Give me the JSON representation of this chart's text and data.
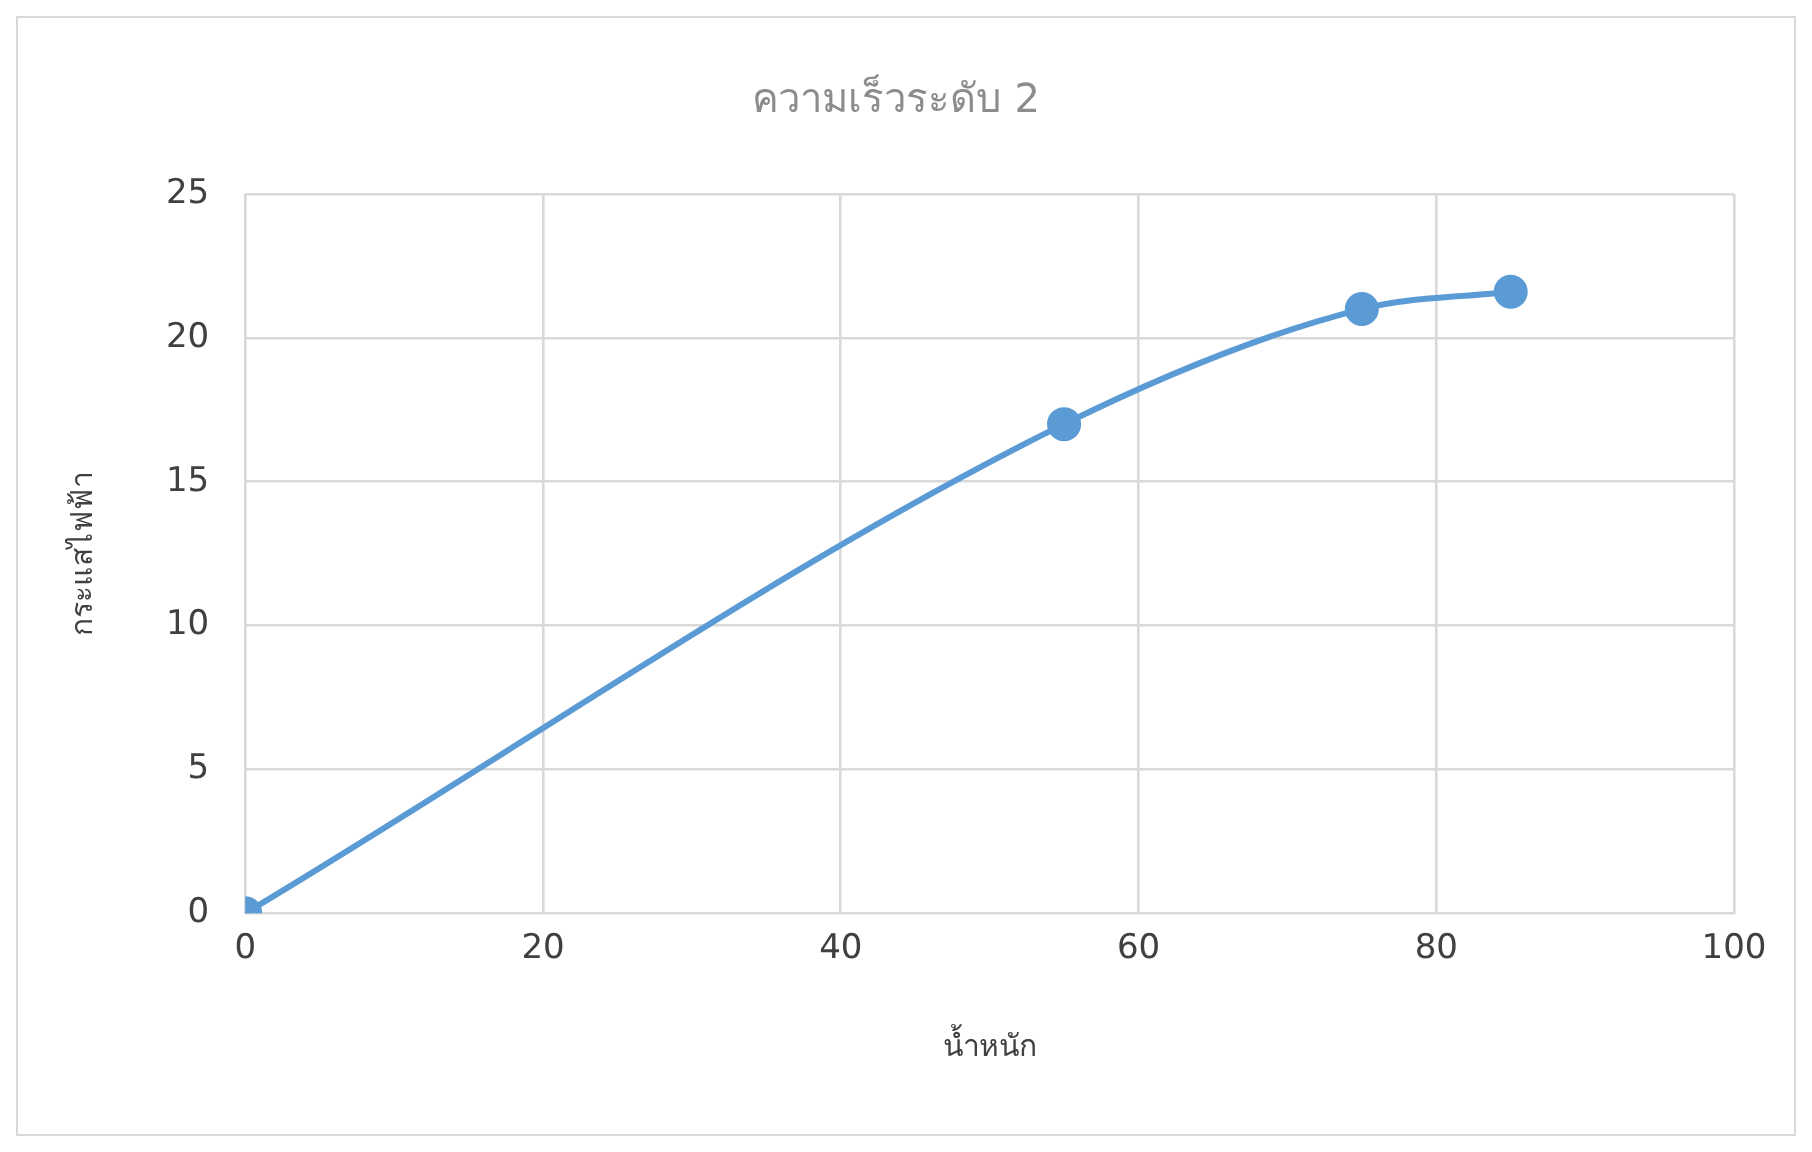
{
  "chart_data": {
    "type": "line",
    "title": "ความเร็วระดับ 2",
    "xlabel": "น้ำหนัก",
    "ylabel": "กระแสไฟฟ้า",
    "x": [
      0,
      55,
      75,
      85
    ],
    "series": [
      {
        "color": "#5b9bd5",
        "values": [
          0,
          17,
          21,
          21.6
        ]
      }
    ],
    "xlim": [
      0,
      100
    ],
    "xticks": [
      0,
      20,
      40,
      60,
      80,
      100
    ],
    "ylim": [
      0,
      25
    ],
    "yticks": [
      0,
      5,
      10,
      15,
      20,
      25
    ],
    "grid": true,
    "legend": false,
    "marker": "circle",
    "line_style": "solid"
  }
}
